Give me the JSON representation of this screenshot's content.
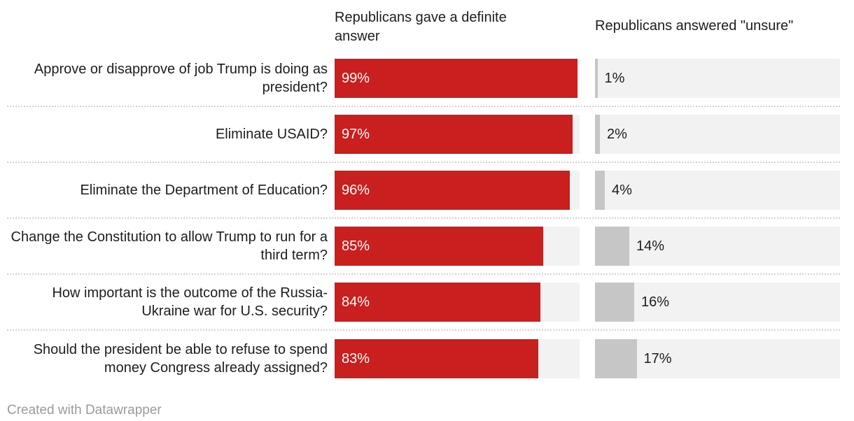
{
  "chart_data": {
    "type": "bar",
    "layout": "split-bars-two-columns",
    "categories": [
      "Approve or disapprove of job Trump is doing as president?",
      "Eliminate USAID?",
      "Eliminate the Department of Education?",
      "Change the Constitution to allow Trump to run for a third term?",
      "How important is the outcome of the Russia-Ukraine war for U.S. security?",
      "Should the president be able to refuse to spend money Congress already assigned?"
    ],
    "series": [
      {
        "name": "Republicans gave a definite answer",
        "values": [
          99,
          97,
          96,
          85,
          84,
          83
        ],
        "color": "#c91f1e"
      },
      {
        "name": "Republicans answered \"unsure\"",
        "values": [
          1,
          2,
          4,
          14,
          16,
          17
        ],
        "color": "#c6c6c6"
      }
    ],
    "value_suffix": "%",
    "xlim": [
      0,
      100
    ],
    "track_color": "#f2f2f2",
    "grid": false,
    "legend_position": "column-headers"
  },
  "headers": {
    "definite": "Republicans gave a definite answer",
    "unsure": "Republicans answered \"unsure\""
  },
  "footer": {
    "credit": "Created with Datawrapper"
  },
  "colors": {
    "definite_bar": "#c91f1e",
    "unsure_bar": "#c6c6c6",
    "track": "#f2f2f2",
    "separator": "#d2d2d2",
    "text": "#1d1d1d",
    "footer_text": "#9b9b9b"
  }
}
